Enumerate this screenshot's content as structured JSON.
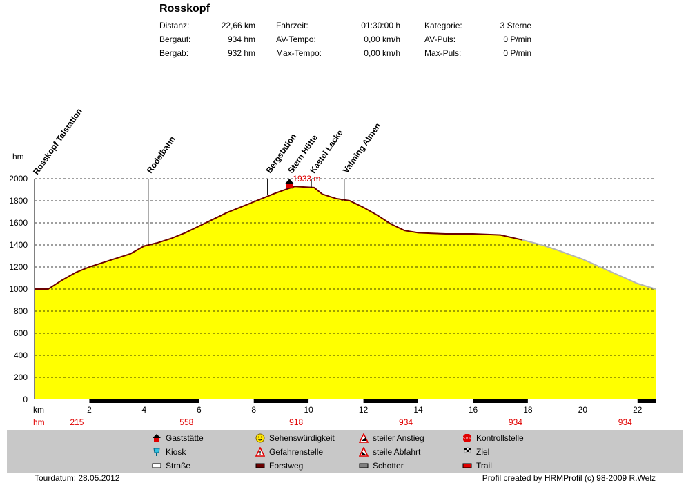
{
  "title": "Rosskopf",
  "stats": [
    {
      "label": "Distanz:",
      "value": "22,66 km"
    },
    {
      "label": "Bergauf:",
      "value": "934 hm"
    },
    {
      "label": "Bergab:",
      "value": "932 hm"
    },
    {
      "label": "Fahrzeit:",
      "value": "01:30:00 h"
    },
    {
      "label": "AV-Tempo:",
      "value": "0,00 km/h"
    },
    {
      "label": "Max-Tempo:",
      "value": "0,00 km/h"
    },
    {
      "label": "Kategorie:",
      "value": "3 Sterne"
    },
    {
      "label": "AV-Puls:",
      "value": "0 P/min"
    },
    {
      "label": "Max-Puls:",
      "value": "0 P/min"
    }
  ],
  "chart_data": {
    "type": "area",
    "ylabel": "hm",
    "xlabel": "km",
    "ylim": [
      0,
      2000
    ],
    "xlim": [
      0,
      22.66
    ],
    "yticks": [
      0,
      200,
      400,
      600,
      800,
      1000,
      1200,
      1400,
      1600,
      1800,
      2000
    ],
    "xticks": [
      2,
      4,
      6,
      8,
      10,
      12,
      14,
      16,
      18,
      20,
      22
    ],
    "grid": true,
    "fill_color": "#ffff00",
    "line_color": "#6b0000",
    "gray_line_color": "#b4b4b4",
    "series": [
      {
        "x": [
          0,
          0.5,
          1.0,
          1.5,
          2.0,
          2.5,
          3.0,
          3.5,
          4.0,
          4.5,
          5.0,
          5.5,
          6.0,
          6.5,
          7.0,
          7.5,
          8.0,
          8.5,
          8.8,
          9.2,
          9.5,
          9.8,
          10.2,
          10.5,
          11.0,
          11.5,
          12.0,
          12.5,
          13.0,
          13.5,
          14.0,
          14.5,
          15.0,
          16.0,
          17.0,
          17.8,
          18.5,
          19.0,
          20.0,
          21.0,
          22.0,
          22.66
        ],
        "y": [
          1000,
          1000,
          1080,
          1150,
          1200,
          1240,
          1280,
          1320,
          1390,
          1420,
          1460,
          1510,
          1570,
          1630,
          1690,
          1740,
          1790,
          1840,
          1870,
          1905,
          1930,
          1925,
          1920,
          1860,
          1820,
          1800,
          1740,
          1670,
          1590,
          1530,
          1510,
          1505,
          1500,
          1500,
          1490,
          1445,
          1400,
          1360,
          1270,
          1160,
          1050,
          1000
        ]
      }
    ],
    "gray_from_km": 17.8,
    "waypoints": [
      {
        "name": "Rosskopf Talstation",
        "km": 0.0,
        "hm": 1000
      },
      {
        "name": "Rodelbahn",
        "km": 4.15,
        "hm": 1400
      },
      {
        "name": "Bergstation",
        "km": 8.5,
        "hm": 1850
      },
      {
        "name": "Stern Hütte",
        "km": 9.3,
        "hm": 1933
      },
      {
        "name": "Kastel Lacke",
        "km": 10.1,
        "hm": 1920
      },
      {
        "name": "Valming Almen",
        "km": 11.3,
        "hm": 1800
      }
    ],
    "peak": {
      "km": 9.3,
      "label": "1933 m"
    },
    "hm_row_label": "hm",
    "hm_row": [
      {
        "km": 2,
        "value": "215"
      },
      {
        "km": 6,
        "value": "558"
      },
      {
        "km": 10,
        "value": "918"
      },
      {
        "km": 14,
        "value": "934"
      },
      {
        "km": 18,
        "value": "934"
      },
      {
        "km": 22,
        "value": "934"
      }
    ],
    "surface_segments": [
      {
        "from": 0,
        "to": 2,
        "type": "Straße"
      },
      {
        "from": 2,
        "to": 6,
        "type": "Forstweg"
      },
      {
        "from": 6,
        "to": 8,
        "type": "Straße"
      },
      {
        "from": 8,
        "to": 10,
        "type": "Forstweg"
      },
      {
        "from": 10,
        "to": 12,
        "type": "Straße"
      },
      {
        "from": 12,
        "to": 14,
        "type": "Forstweg"
      },
      {
        "from": 14,
        "to": 16,
        "type": "Straße"
      },
      {
        "from": 16,
        "to": 18,
        "type": "Forstweg"
      },
      {
        "from": 18,
        "to": 22,
        "type": "Straße"
      },
      {
        "from": 22,
        "to": 22.66,
        "type": "Forstweg"
      }
    ]
  },
  "legend": [
    {
      "icon": "house-icon",
      "label": "Gaststätte"
    },
    {
      "icon": "smiley-icon",
      "label": "Sehenswürdigkeit"
    },
    {
      "icon": "steep-ascent-icon",
      "label": "steiler Anstieg"
    },
    {
      "icon": "stop-icon",
      "label": "Kontrollstelle"
    },
    {
      "icon": "kiosk-icon",
      "label": "Kiosk"
    },
    {
      "icon": "warning-icon",
      "label": "Gefahrenstelle"
    },
    {
      "icon": "steep-descent-icon",
      "label": "steile Abfahrt"
    },
    {
      "icon": "finish-flag-icon",
      "label": "Ziel"
    },
    {
      "icon": "road-swatch",
      "label": "Straße"
    },
    {
      "icon": "forest-road-swatch",
      "label": "Forstweg"
    },
    {
      "icon": "gravel-swatch",
      "label": "Schotter"
    },
    {
      "icon": "trail-swatch",
      "label": "Trail"
    }
  ],
  "footer": {
    "date": "Tourdatum: 28.05.2012",
    "credit": "Profil created by HRMProfil (c) 98-2009 R.Welz"
  }
}
